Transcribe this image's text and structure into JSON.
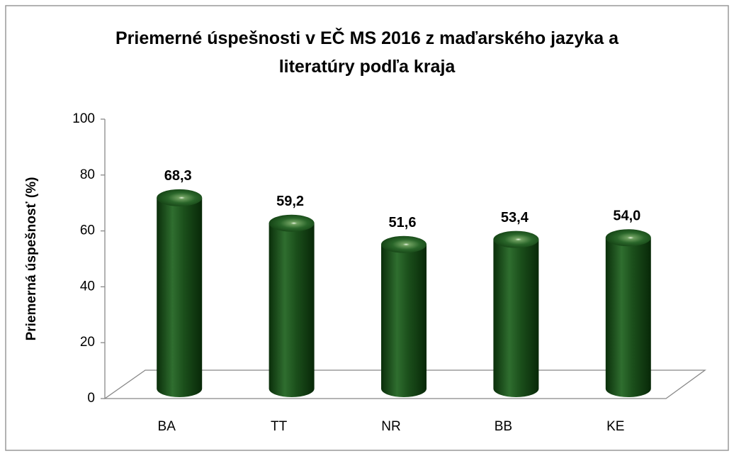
{
  "chart_data": {
    "type": "bar",
    "title": "Priemerné úspešnosti v EČ MS 2016 z maďarského jazyka a literatúry podľa kraja",
    "y_label": "Priemerná úspešnosť (%)",
    "categories": [
      "BA",
      "TT",
      "NR",
      "BB",
      "KE"
    ],
    "values": [
      68.3,
      59.2,
      51.6,
      53.4,
      54.0
    ],
    "value_labels": [
      "68,3",
      "59,2",
      "51,6",
      "53,4",
      "54,0"
    ],
    "color": "#1f5a1f",
    "ylim": [
      0,
      100
    ],
    "yticks": [
      0,
      20,
      40,
      60,
      80,
      100
    ],
    "grid": false
  }
}
